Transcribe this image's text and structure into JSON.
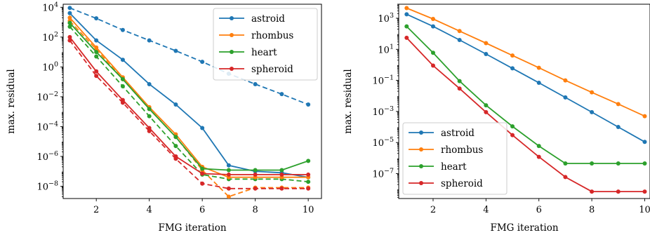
{
  "chart_data": [
    {
      "type": "line",
      "xlabel": "FMG iteration",
      "ylabel": "max. residual",
      "yscale": "log",
      "xlim": [
        0.75,
        10.5
      ],
      "ylim": [
        1.5e-09,
        16000.0
      ],
      "xticks": [
        2,
        4,
        6,
        8,
        10
      ],
      "yticks": [
        {
          "value": 10000.0,
          "base": "10",
          "exp": "4"
        },
        {
          "value": 100.0,
          "base": "10",
          "exp": "2"
        },
        {
          "value": 1.0,
          "base": "10",
          "exp": "0"
        },
        {
          "value": 0.01,
          "base": "10",
          "exp": "−2"
        },
        {
          "value": 0.0001,
          "base": "10",
          "exp": "−4"
        },
        {
          "value": 1e-06,
          "base": "10",
          "exp": "−6"
        },
        {
          "value": 1e-08,
          "base": "10",
          "exp": "−8"
        }
      ],
      "legend_position": "top-right",
      "series": [
        {
          "name": "astroid",
          "color": "#1f77b4",
          "style": "solid",
          "x": [
            1,
            2,
            3,
            4,
            5,
            6,
            7,
            8,
            9,
            10
          ],
          "y": [
            4000.0,
            60,
            3,
            0.07,
            0.003,
            8e-05,
            2.5e-07,
            1e-07,
            8e-08,
            4e-08
          ]
        },
        {
          "name": "rhombus",
          "color": "#ff7f0e",
          "style": "solid",
          "x": [
            1,
            2,
            3,
            4,
            5,
            6,
            7,
            8,
            9,
            10
          ],
          "y": [
            2000,
            20,
            0.2,
            0.002,
            3e-05,
            2e-07,
            4e-08,
            4e-08,
            4e-08,
            4e-08
          ]
        },
        {
          "name": "heart",
          "color": "#2ca02c",
          "style": "solid",
          "x": [
            1,
            2,
            3,
            4,
            5,
            6,
            7,
            8,
            9,
            10
          ],
          "y": [
            900,
            10,
            0.15,
            0.0015,
            2e-05,
            1.5e-07,
            1.2e-07,
            1.2e-07,
            1.2e-07,
            5e-07
          ]
        },
        {
          "name": "spheroid",
          "color": "#d62728",
          "style": "solid",
          "x": [
            1,
            2,
            3,
            4,
            5,
            6,
            7,
            8,
            9,
            10
          ],
          "y": [
            100,
            0.5,
            0.006,
            8e-05,
            1e-06,
            7e-08,
            6e-08,
            6e-08,
            6e-08,
            6e-08
          ]
        },
        {
          "color": "#1f77b4",
          "style": "dashed",
          "x": [
            1,
            2,
            3,
            4,
            5,
            6,
            7,
            8,
            9,
            10
          ],
          "y": [
            9000,
            1800,
            300,
            60,
            12,
            2.2,
            0.35,
            0.07,
            0.015,
            0.003
          ]
        },
        {
          "color": "#ff7f0e",
          "style": "dashed",
          "x": [
            1,
            2,
            3,
            4,
            5,
            6,
            7,
            8,
            9,
            10
          ],
          "y": [
            1200,
            15,
            0.15,
            0.0015,
            2e-05,
            1.2e-07,
            2e-09,
            8e-09,
            8e-09,
            8e-09
          ]
        },
        {
          "color": "#2ca02c",
          "style": "dashed",
          "x": [
            1,
            2,
            3,
            4,
            5,
            6,
            7,
            8,
            9,
            10
          ],
          "y": [
            500,
            5,
            0.05,
            0.0005,
            5e-06,
            6e-08,
            3e-08,
            3e-08,
            3e-08,
            2e-08
          ]
        },
        {
          "color": "#d62728",
          "style": "dashed",
          "x": [
            1,
            2,
            3,
            4,
            5,
            6,
            7,
            8,
            9,
            10
          ],
          "y": [
            60,
            0.25,
            0.004,
            5e-05,
            7e-07,
            1.5e-08,
            7e-09,
            7e-09,
            7e-09,
            7e-09
          ]
        }
      ]
    },
    {
      "type": "line",
      "xlabel": "FMG iteration",
      "ylabel": "max. residual",
      "yscale": "log",
      "xlim": [
        0.7,
        10.2
      ],
      "ylim": [
        2.5e-09,
        8000.0
      ],
      "xticks": [
        2,
        4,
        6,
        8,
        10
      ],
      "yticks": [
        {
          "value": 1000.0,
          "base": "10",
          "exp": "3"
        },
        {
          "value": 10.0,
          "base": "10",
          "exp": "1"
        },
        {
          "value": 0.1,
          "base": "10",
          "exp": "−1"
        },
        {
          "value": 0.001,
          "base": "10",
          "exp": "−3"
        },
        {
          "value": 1e-05,
          "base": "10",
          "exp": "−5"
        },
        {
          "value": 1e-07,
          "base": "10",
          "exp": "−7"
        }
      ],
      "legend_position": "lower-left",
      "series": [
        {
          "name": "astroid",
          "color": "#1f77b4",
          "style": "solid",
          "x": [
            1,
            2,
            3,
            4,
            5,
            6,
            7,
            8,
            9,
            10
          ],
          "y": [
            1800,
            300,
            40,
            5,
            0.6,
            0.07,
            0.008,
            0.0009,
            0.0001,
            1.1e-05
          ]
        },
        {
          "name": "rhombus",
          "color": "#ff7f0e",
          "style": "solid",
          "x": [
            1,
            2,
            3,
            4,
            5,
            6,
            7,
            8,
            9,
            10
          ],
          "y": [
            4500,
            900,
            150,
            25,
            4,
            0.65,
            0.1,
            0.017,
            0.003,
            0.0005
          ]
        },
        {
          "name": "heart",
          "color": "#2ca02c",
          "style": "solid",
          "x": [
            1,
            2,
            3,
            4,
            5,
            6,
            7,
            8,
            9,
            10
          ],
          "y": [
            300,
            6,
            0.09,
            0.0025,
            0.00011,
            6e-06,
            4.5e-07,
            4.5e-07,
            4.5e-07,
            4.5e-07
          ]
        },
        {
          "name": "spheroid",
          "color": "#d62728",
          "style": "solid",
          "x": [
            1,
            2,
            3,
            4,
            5,
            6,
            7,
            8,
            9,
            10
          ],
          "y": [
            55,
            0.9,
            0.03,
            0.0009,
            3e-05,
            1.2e-06,
            6e-08,
            7e-09,
            7e-09,
            7e-09
          ]
        }
      ]
    }
  ]
}
